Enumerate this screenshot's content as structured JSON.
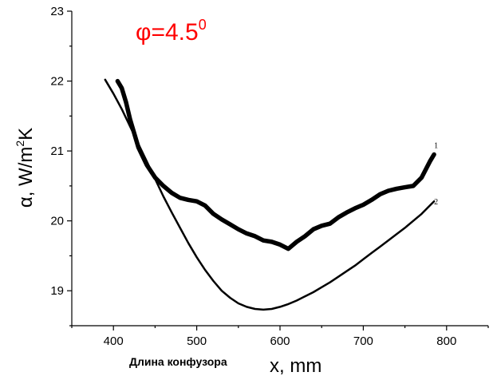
{
  "chart_data": {
    "type": "line",
    "title_main": "φ=4.5",
    "title_superscript": "0",
    "title_color": "#ff0000",
    "ylabel_prefix": "α, W/m",
    "ylabel_exponent": "2",
    "ylabel_suffix": "K",
    "xlabel": "x, mm",
    "x_note": "Длина конфузора",
    "xlim": [
      350,
      850
    ],
    "ylim": [
      18.5,
      23.0
    ],
    "x_ticks": [
      400,
      500,
      600,
      700,
      800
    ],
    "y_ticks": [
      19,
      20,
      21,
      22,
      23
    ],
    "grid": false,
    "series": [
      {
        "name": "1",
        "color": "#000000",
        "x": [
          405,
          410,
          415,
          420,
          430,
          440,
          450,
          460,
          470,
          480,
          490,
          500,
          510,
          520,
          530,
          540,
          550,
          560,
          570,
          580,
          590,
          600,
          610,
          620,
          630,
          640,
          650,
          660,
          670,
          680,
          690,
          700,
          710,
          720,
          730,
          740,
          750,
          760,
          770,
          780,
          785
        ],
        "y": [
          22.0,
          21.9,
          21.7,
          21.45,
          21.05,
          20.8,
          20.62,
          20.5,
          20.4,
          20.33,
          20.3,
          20.28,
          20.22,
          20.1,
          20.02,
          19.95,
          19.88,
          19.82,
          19.78,
          19.72,
          19.7,
          19.66,
          19.6,
          19.7,
          19.78,
          19.88,
          19.93,
          19.96,
          20.05,
          20.12,
          20.18,
          20.23,
          20.3,
          20.38,
          20.43,
          20.46,
          20.48,
          20.5,
          20.62,
          20.85,
          20.95
        ]
      },
      {
        "name": "2",
        "color": "#000000",
        "x": [
          390,
          400,
          410,
          420,
          430,
          440,
          450,
          460,
          470,
          480,
          490,
          500,
          510,
          520,
          530,
          540,
          550,
          560,
          570,
          580,
          590,
          600,
          610,
          620,
          630,
          640,
          650,
          660,
          670,
          680,
          690,
          700,
          710,
          720,
          730,
          740,
          750,
          760,
          770,
          780,
          785
        ],
        "y": [
          22.02,
          21.82,
          21.6,
          21.35,
          21.1,
          20.85,
          20.6,
          20.35,
          20.12,
          19.9,
          19.68,
          19.48,
          19.3,
          19.14,
          19.0,
          18.9,
          18.82,
          18.77,
          18.74,
          18.73,
          18.74,
          18.77,
          18.81,
          18.86,
          18.92,
          18.98,
          19.05,
          19.12,
          19.2,
          19.28,
          19.36,
          19.45,
          19.54,
          19.63,
          19.72,
          19.81,
          19.9,
          20.0,
          20.1,
          20.22,
          20.28
        ]
      }
    ]
  }
}
